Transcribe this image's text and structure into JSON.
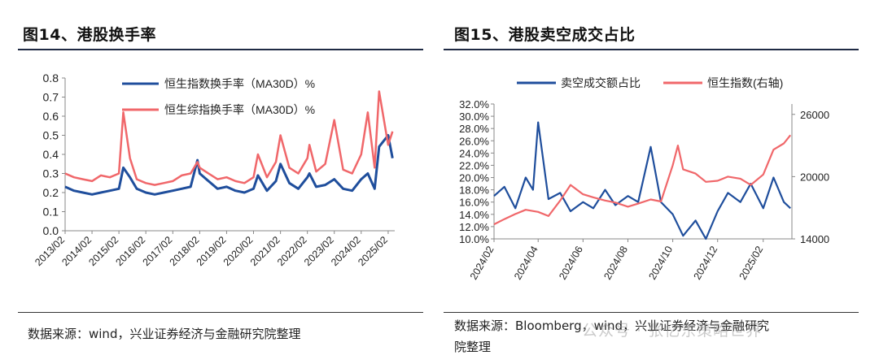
{
  "panels": {
    "left": {
      "title": "图14、港股换手率",
      "source": "数据来源：wind，兴业证券经济与金融研究院整理"
    },
    "right": {
      "title": "图15、港股卖空成交占比",
      "source_line1": "数据来源：Bloomberg，wind，兴业证券经济与金融研究",
      "source_line2": "院整理",
      "watermark": "公众号 · 张忆东策略世界"
    }
  },
  "colors": {
    "blue": "#1f4e9c",
    "red": "#f0676a"
  },
  "chart_data": [
    {
      "type": "line",
      "title": "",
      "xlabel": "",
      "ylabel": "",
      "ylim": [
        0,
        0.8
      ],
      "yticks": [
        "0.0",
        "0.1",
        "0.2",
        "0.3",
        "0.4",
        "0.5",
        "0.6",
        "0.7",
        "0.8"
      ],
      "xticks": [
        "2013/02",
        "2014/02",
        "2015/02",
        "2016/02",
        "2017/02",
        "2018/02",
        "2019/02",
        "2020/02",
        "2021/02",
        "2022/02",
        "2023/02",
        "2024/02",
        "2025/02"
      ],
      "legend_position": "top-center",
      "grid": false,
      "series": [
        {
          "name": "恒生指数换手率（MA30D）%",
          "color": "#1f4e9c",
          "x": [
            "2013/02",
            "2013/06",
            "2013/10",
            "2014/02",
            "2014/06",
            "2014/10",
            "2015/02",
            "2015/04",
            "2015/07",
            "2015/10",
            "2016/02",
            "2016/06",
            "2016/10",
            "2017/02",
            "2017/06",
            "2017/10",
            "2018/01",
            "2018/02",
            "2018/06",
            "2018/10",
            "2019/02",
            "2019/06",
            "2019/10",
            "2020/02",
            "2020/04",
            "2020/08",
            "2020/12",
            "2021/02",
            "2021/06",
            "2021/10",
            "2022/02",
            "2022/03",
            "2022/06",
            "2022/10",
            "2023/02",
            "2023/06",
            "2023/10",
            "2024/02",
            "2024/05",
            "2024/08",
            "2024/10",
            "2025/02",
            "2025/04"
          ],
          "values": [
            0.23,
            0.21,
            0.2,
            0.19,
            0.2,
            0.21,
            0.22,
            0.33,
            0.28,
            0.22,
            0.2,
            0.19,
            0.2,
            0.21,
            0.22,
            0.23,
            0.37,
            0.3,
            0.26,
            0.22,
            0.23,
            0.21,
            0.2,
            0.22,
            0.29,
            0.21,
            0.26,
            0.35,
            0.25,
            0.22,
            0.28,
            0.3,
            0.23,
            0.24,
            0.27,
            0.22,
            0.21,
            0.27,
            0.3,
            0.22,
            0.44,
            0.5,
            0.38
          ]
        },
        {
          "name": "恒生综指换手率（MA30D）%",
          "color": "#f0676a",
          "x": [
            "2013/02",
            "2013/06",
            "2013/10",
            "2014/02",
            "2014/06",
            "2014/10",
            "2015/02",
            "2015/04",
            "2015/07",
            "2015/10",
            "2016/02",
            "2016/06",
            "2016/10",
            "2017/02",
            "2017/06",
            "2017/10",
            "2018/01",
            "2018/02",
            "2018/06",
            "2018/10",
            "2019/02",
            "2019/06",
            "2019/10",
            "2020/02",
            "2020/04",
            "2020/08",
            "2020/12",
            "2021/02",
            "2021/06",
            "2021/10",
            "2022/02",
            "2022/03",
            "2022/06",
            "2022/10",
            "2023/02",
            "2023/06",
            "2023/10",
            "2024/02",
            "2024/05",
            "2024/08",
            "2024/10",
            "2025/02",
            "2025/04"
          ],
          "values": [
            0.3,
            0.28,
            0.27,
            0.26,
            0.29,
            0.28,
            0.3,
            0.62,
            0.38,
            0.27,
            0.25,
            0.24,
            0.25,
            0.26,
            0.29,
            0.3,
            0.36,
            0.33,
            0.3,
            0.27,
            0.28,
            0.26,
            0.25,
            0.28,
            0.4,
            0.28,
            0.36,
            0.5,
            0.33,
            0.3,
            0.38,
            0.45,
            0.31,
            0.35,
            0.58,
            0.32,
            0.3,
            0.4,
            0.62,
            0.33,
            0.73,
            0.45,
            0.52
          ]
        }
      ]
    },
    {
      "type": "line",
      "title": "",
      "xlabel": "",
      "ylabel": "",
      "ylim": [
        0.1,
        0.32
      ],
      "yticks": [
        "10.0%",
        "12.0%",
        "14.0%",
        "16.0%",
        "18.0%",
        "20.0%",
        "22.0%",
        "24.0%",
        "26.0%",
        "28.0%",
        "30.0%",
        "32.0%"
      ],
      "y2lim": [
        14000,
        27000
      ],
      "y2ticks": [
        "14000",
        "20000",
        "26000"
      ],
      "xticks": [
        "2024/02",
        "2024/04",
        "2024/06",
        "2024/08",
        "2024/10",
        "2024/12",
        "2025/02"
      ],
      "legend_position": "top",
      "grid": false,
      "series": [
        {
          "name": "卖空成交额占比",
          "color": "#1f4e9c",
          "axis": "left",
          "x": [
            "2024/02/01",
            "2024/02/15",
            "2024/03/01",
            "2024/03/15",
            "2024/03/25",
            "2024/04/01",
            "2024/04/15",
            "2024/05/01",
            "2024/05/15",
            "2024/06/01",
            "2024/06/15",
            "2024/07/01",
            "2024/07/15",
            "2024/08/01",
            "2024/08/15",
            "2024/09/01",
            "2024/09/15",
            "2024/10/01",
            "2024/10/15",
            "2024/11/01",
            "2024/11/15",
            "2024/12/01",
            "2024/12/15",
            "2025/01/01",
            "2025/01/15",
            "2025/02/01",
            "2025/02/15",
            "2025/03/01",
            "2025/03/10"
          ],
          "values": [
            0.17,
            0.185,
            0.15,
            0.2,
            0.18,
            0.29,
            0.165,
            0.175,
            0.145,
            0.16,
            0.15,
            0.18,
            0.155,
            0.17,
            0.16,
            0.25,
            0.16,
            0.14,
            0.105,
            0.13,
            0.1,
            0.145,
            0.175,
            0.16,
            0.19,
            0.15,
            0.2,
            0.16,
            0.15
          ]
        },
        {
          "name": "恒生指数(右轴)",
          "color": "#f0676a",
          "axis": "right",
          "x": [
            "2024/02/01",
            "2024/02/15",
            "2024/03/01",
            "2024/03/15",
            "2024/04/01",
            "2024/04/15",
            "2024/05/01",
            "2024/05/15",
            "2024/06/01",
            "2024/06/15",
            "2024/07/01",
            "2024/07/15",
            "2024/08/01",
            "2024/08/15",
            "2024/09/01",
            "2024/09/15",
            "2024/10/01",
            "2024/10/08",
            "2024/10/15",
            "2024/11/01",
            "2024/11/15",
            "2024/12/01",
            "2024/12/15",
            "2025/01/01",
            "2025/01/15",
            "2025/02/01",
            "2025/02/15",
            "2025/03/01",
            "2025/03/10"
          ],
          "values": [
            15400,
            15900,
            16400,
            16800,
            16600,
            16200,
            17700,
            19200,
            18300,
            18000,
            17700,
            17500,
            17100,
            17400,
            17800,
            17600,
            21100,
            23000,
            20700,
            20300,
            19500,
            19600,
            20000,
            19800,
            19200,
            20200,
            22600,
            23200,
            24000
          ]
        }
      ]
    }
  ]
}
